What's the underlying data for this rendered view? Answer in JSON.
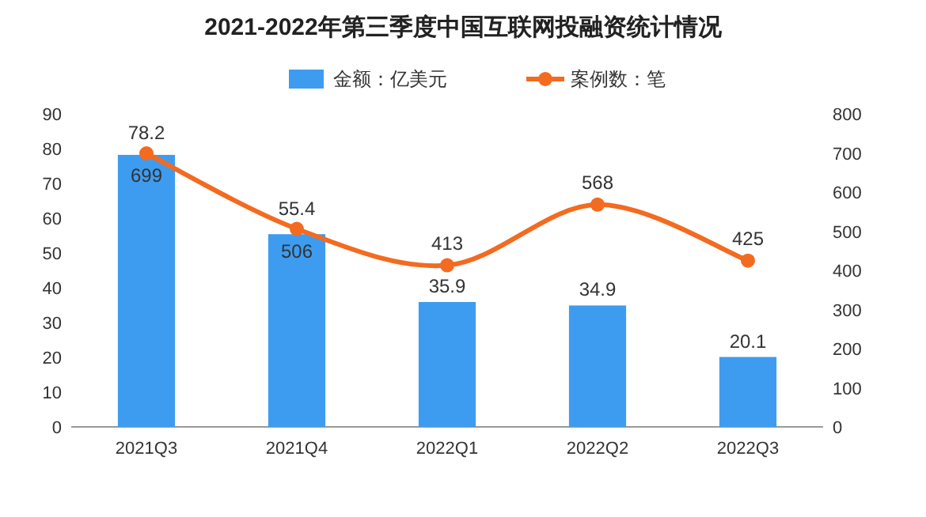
{
  "chart_data": {
    "type": "bar",
    "title": "2021-2022年第三季度中国互联网投融资统计情况",
    "categories": [
      "2021Q3",
      "2021Q4",
      "2022Q1",
      "2022Q2",
      "2022Q3"
    ],
    "series": [
      {
        "name": "金额：亿美元",
        "color": "#3e9cf0",
        "values": [
          78.2,
          55.4,
          35.9,
          34.9,
          20.1
        ]
      },
      {
        "name": "案例数：笔",
        "type": "line",
        "axis": "y2",
        "color": "#f26b21",
        "values": [
          699,
          506,
          413,
          568,
          425
        ]
      }
    ],
    "ylim": [
      0,
      90
    ],
    "yticks": [
      0,
      10,
      20,
      30,
      40,
      50,
      60,
      70,
      80,
      90
    ],
    "y2lim": [
      0,
      800
    ],
    "y2ticks": [
      0,
      100,
      200,
      300,
      400,
      500,
      600,
      700,
      800
    ],
    "data_labels": true,
    "legend": "top",
    "marker": "circle",
    "line_style": "solid",
    "grid": false
  }
}
